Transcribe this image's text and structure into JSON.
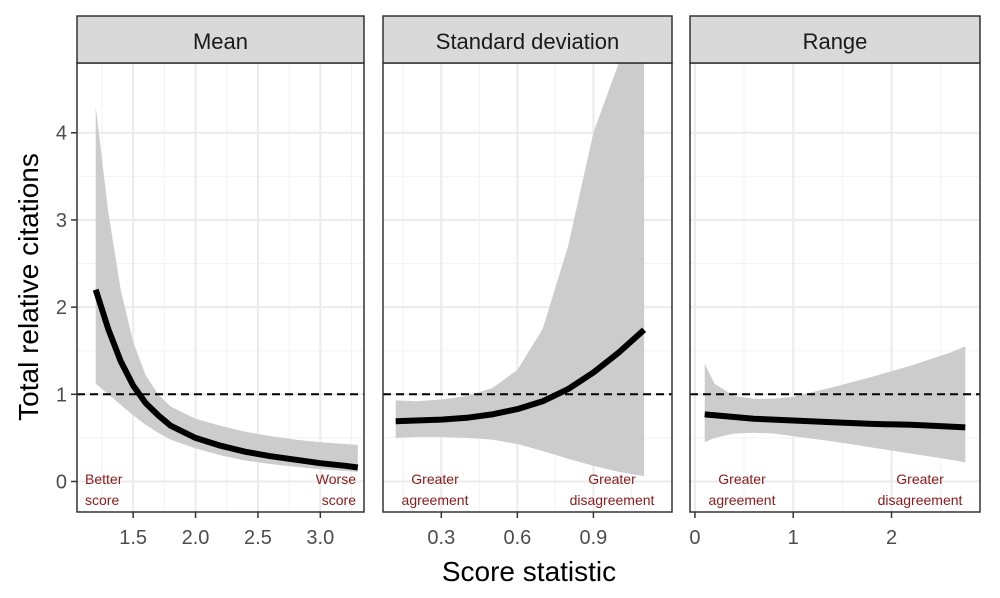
{
  "chart_data": {
    "type": "line",
    "xlabel": "Score statistic",
    "ylabel": "Total relative citations",
    "ylim": [
      -0.35,
      4.8
    ],
    "yticks": [
      0,
      1,
      2,
      3,
      4
    ],
    "yticklabels": [
      "0",
      "1",
      "2",
      "3",
      "4"
    ],
    "reference_line": {
      "y": 1,
      "style": "dashed"
    },
    "grid": true,
    "colors": {
      "line": "#000000",
      "band": "#cccccc",
      "strip": "#d9d9d9",
      "annotation": "#8b1a1a",
      "reference": "#000000"
    },
    "panels": [
      {
        "title": "Mean",
        "xlim": [
          1.05,
          3.35
        ],
        "xticks": [
          1.5,
          2.0,
          2.5,
          3.0
        ],
        "xticklabels": [
          "1.5",
          "2.0",
          "2.5",
          "3.0"
        ],
        "x": [
          1.2,
          1.3,
          1.4,
          1.5,
          1.6,
          1.7,
          1.8,
          2.0,
          2.2,
          2.4,
          2.6,
          2.8,
          3.0,
          3.2,
          3.3
        ],
        "y": [
          2.2,
          1.75,
          1.38,
          1.1,
          0.9,
          0.76,
          0.64,
          0.5,
          0.41,
          0.34,
          0.29,
          0.25,
          0.21,
          0.18,
          0.16
        ],
        "lower": [
          1.12,
          1.0,
          0.88,
          0.76,
          0.65,
          0.56,
          0.48,
          0.38,
          0.3,
          0.24,
          0.2,
          0.17,
          0.14,
          0.12,
          0.11
        ],
        "upper": [
          4.3,
          3.1,
          2.2,
          1.6,
          1.22,
          1.0,
          0.86,
          0.72,
          0.64,
          0.57,
          0.52,
          0.48,
          0.45,
          0.43,
          0.42
        ],
        "annotations": [
          {
            "text": [
              "Better",
              "score"
            ],
            "position": "left"
          },
          {
            "text": [
              "Worse",
              "score"
            ],
            "position": "right"
          }
        ]
      },
      {
        "title": "Standard deviation",
        "xlim": [
          0.07,
          1.21
        ],
        "xticks": [
          0.3,
          0.6,
          0.9
        ],
        "xticklabels": [
          "0.3",
          "0.6",
          "0.9"
        ],
        "x": [
          0.12,
          0.2,
          0.3,
          0.4,
          0.5,
          0.6,
          0.7,
          0.8,
          0.9,
          1.0,
          1.1
        ],
        "y": [
          0.69,
          0.7,
          0.71,
          0.73,
          0.77,
          0.83,
          0.92,
          1.06,
          1.25,
          1.48,
          1.74
        ],
        "lower": [
          0.5,
          0.51,
          0.51,
          0.5,
          0.48,
          0.43,
          0.35,
          0.26,
          0.18,
          0.11,
          0.06
        ],
        "upper": [
          0.93,
          0.92,
          0.94,
          0.98,
          1.07,
          1.28,
          1.75,
          2.7,
          4.0,
          4.8,
          4.8
        ],
        "annotations": [
          {
            "text": [
              "Greater",
              "agreement"
            ],
            "position": "left"
          },
          {
            "text": [
              "Greater",
              "disagreement"
            ],
            "position": "right"
          }
        ]
      },
      {
        "title": "Range",
        "xlim": [
          -0.05,
          2.9
        ],
        "xticks": [
          0,
          1,
          2
        ],
        "xticklabels": [
          "0",
          "1",
          "2"
        ],
        "x": [
          0.1,
          0.2,
          0.4,
          0.6,
          0.8,
          1.0,
          1.4,
          1.8,
          2.2,
          2.6,
          2.75
        ],
        "y": [
          0.77,
          0.76,
          0.74,
          0.72,
          0.71,
          0.7,
          0.68,
          0.66,
          0.65,
          0.63,
          0.62
        ],
        "lower": [
          0.45,
          0.5,
          0.55,
          0.56,
          0.55,
          0.52,
          0.46,
          0.39,
          0.32,
          0.25,
          0.22
        ],
        "upper": [
          1.35,
          1.12,
          0.98,
          0.95,
          0.95,
          0.97,
          1.08,
          1.2,
          1.33,
          1.48,
          1.55
        ],
        "annotations": [
          {
            "text": [
              "Greater",
              "agreement"
            ],
            "position": "left"
          },
          {
            "text": [
              "Greater",
              "disagreement"
            ],
            "position": "right"
          }
        ]
      }
    ]
  }
}
